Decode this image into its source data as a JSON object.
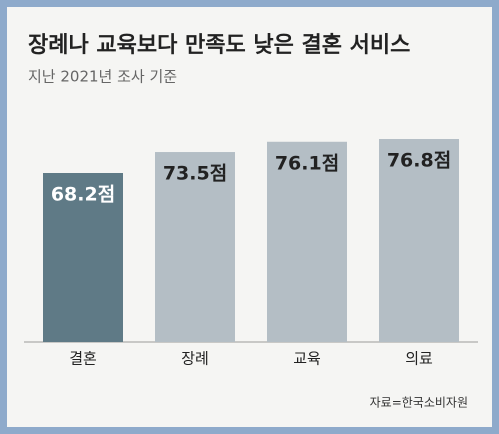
{
  "chart_data": {
    "type": "bar",
    "title": "장례나 교육보다 만족도 낮은 결혼 서비스",
    "subtitle": "지난 2021년 조사 기준",
    "categories": [
      "결혼",
      "장례",
      "교육",
      "의료"
    ],
    "values": [
      68.2,
      73.5,
      76.1,
      76.8
    ],
    "value_labels": [
      "68.2점",
      "73.5점",
      "76.1점",
      "76.8점"
    ],
    "colors": [
      "#5f7a86",
      "#b4bec5",
      "#b4bec5",
      "#b4bec5"
    ],
    "source": "자료=한국소비자원"
  }
}
